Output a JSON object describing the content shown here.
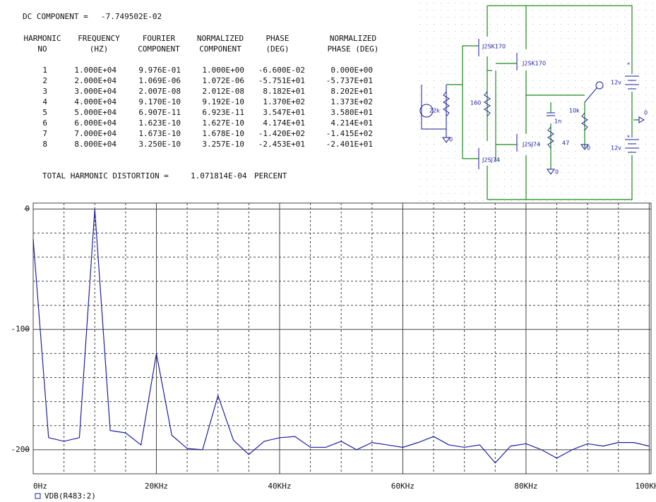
{
  "fourier": {
    "dc_component": {
      "label": "DC COMPONENT =",
      "value": "-7.749502E-02"
    },
    "columns": [
      [
        "HARMONIC",
        "NO"
      ],
      [
        "FREQUENCY",
        "(HZ)"
      ],
      [
        "FOURIER",
        "COMPONENT"
      ],
      [
        "NORMALIZED",
        "COMPONENT"
      ],
      [
        "PHASE",
        "(DEG)"
      ],
      [
        "NORMALIZED",
        "PHASE (DEG)"
      ]
    ],
    "rows": [
      [
        "1",
        "1.000E+04",
        "9.976E-01",
        "1.000E+00",
        "-6.600E-02",
        "0.000E+00"
      ],
      [
        "2",
        "2.000E+04",
        "1.069E-06",
        "1.072E-06",
        "-5.751E+01",
        "-5.737E+01"
      ],
      [
        "3",
        "3.000E+04",
        "2.007E-08",
        "2.012E-08",
        "8.182E+01",
        "8.202E+01"
      ],
      [
        "4",
        "4.000E+04",
        "9.170E-10",
        "9.192E-10",
        "1.370E+02",
        "1.373E+02"
      ],
      [
        "5",
        "5.000E+04",
        "6.907E-11",
        "6.923E-11",
        "3.547E+01",
        "3.580E+01"
      ],
      [
        "6",
        "6.000E+04",
        "1.623E-10",
        "1.627E-10",
        "4.174E+01",
        "4.214E+01"
      ],
      [
        "7",
        "7.000E+04",
        "1.673E-10",
        "1.678E-10",
        "-1.420E+02",
        "-1.415E+02"
      ],
      [
        "8",
        "8.000E+04",
        "3.250E-10",
        "3.257E-10",
        "-2.453E+01",
        "-2.401E+01"
      ]
    ],
    "total_harmonic_distortion": {
      "label": "TOTAL HARMONIC DISTORTION =",
      "value": "1.071814E-04",
      "unit": "PERCENT"
    }
  },
  "schematic": {
    "labels": [
      "J2SK170",
      "J2SK170",
      "160",
      "J2SJ74",
      "J2SJ74",
      "22k",
      "0",
      "1n",
      "47",
      "10k",
      "0",
      "0",
      "12v",
      "12v",
      "0",
      "*",
      "*"
    ]
  },
  "chart_data": {
    "type": "line",
    "x": [
      0,
      2500,
      5000,
      7500,
      10000,
      12500,
      15000,
      17500,
      20000,
      22500,
      25000,
      27500,
      30000,
      32500,
      35000,
      37500,
      40000,
      42500,
      45000,
      47500,
      50000,
      52500,
      55000,
      57500,
      60000,
      62500,
      65000,
      67500,
      70000,
      72500,
      75000,
      77500,
      80000,
      82500,
      85000,
      87500,
      90000,
      92500,
      95000,
      97500,
      100000
    ],
    "series": [
      {
        "name": "VDB(R483:2)",
        "color": "#2020a0",
        "values": [
          -25,
          -190,
          -193,
          -190,
          0,
          -184,
          -186,
          -196,
          -120,
          -188,
          -199,
          -200,
          -155,
          -192,
          -204,
          -193,
          -190,
          -189,
          -198,
          -198,
          -193,
          -200,
          -194,
          -196,
          -198,
          -194,
          -189,
          -196,
          -198,
          -196,
          -211,
          -197,
          -195,
          -200,
          -207,
          -200,
          -195,
          -197,
          -194,
          -194,
          -197
        ]
      }
    ],
    "xlim": [
      0,
      100300
    ],
    "ylim": [
      -220,
      5
    ],
    "xticks": [
      {
        "value": 0,
        "label": "0Hz"
      },
      {
        "value": 20000,
        "label": "20KHz"
      },
      {
        "value": 40000,
        "label": "40KHz"
      },
      {
        "value": 60000,
        "label": "60KHz"
      },
      {
        "value": 80000,
        "label": "80KHz"
      },
      {
        "value": 100000,
        "label": "100KHz"
      }
    ],
    "yticks": [
      0,
      -100,
      -200
    ],
    "grid": true,
    "x_minor_per_major": 4,
    "y_minor_per_major": 5,
    "legend": "bottom-left"
  }
}
